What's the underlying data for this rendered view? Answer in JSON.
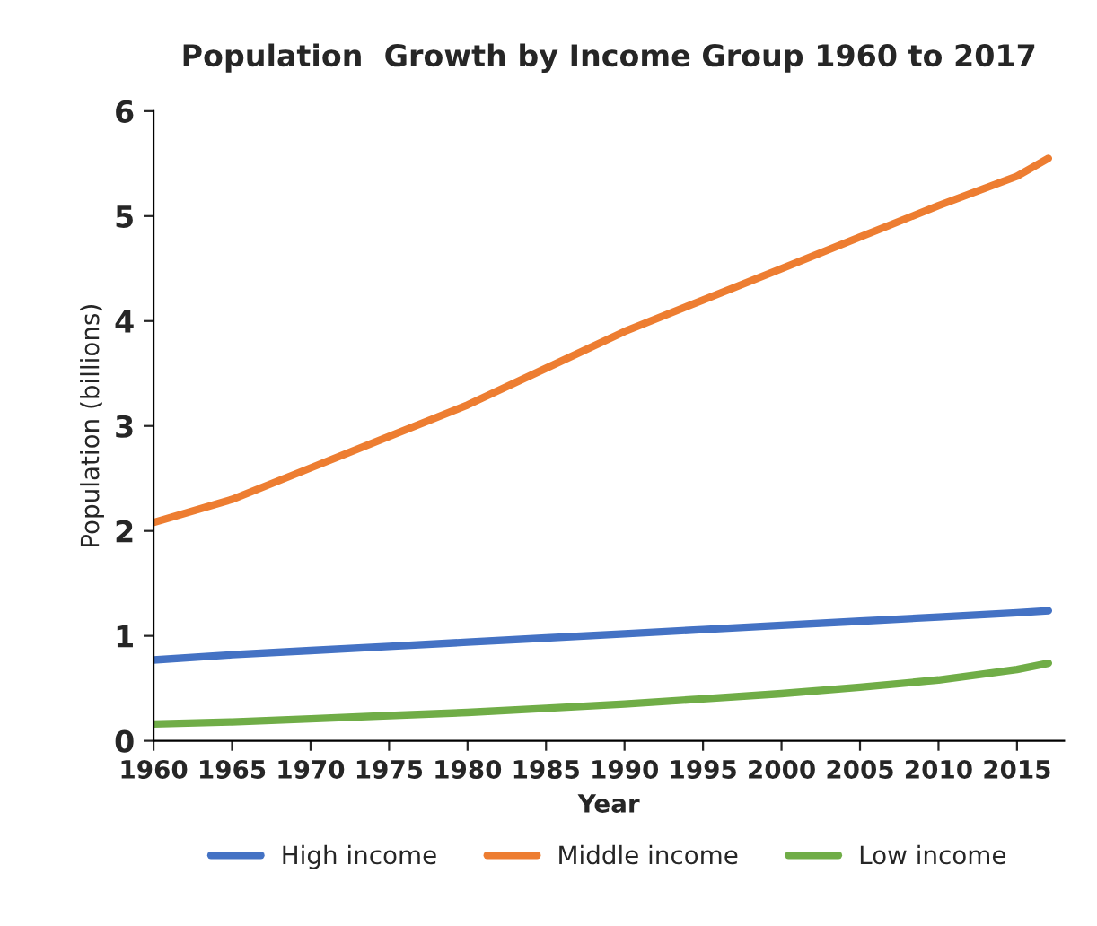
{
  "chart_data": {
    "type": "line",
    "title": "Population  Growth by Income Group 1960 to 2017",
    "xlabel": "Year",
    "ylabel": "Population (billions)",
    "x": [
      1960,
      1965,
      1970,
      1975,
      1980,
      1985,
      1990,
      1995,
      2000,
      2005,
      2010,
      2015,
      2017
    ],
    "series": [
      {
        "name": "High income",
        "color": "#4472c4",
        "values": [
          0.77,
          0.82,
          0.86,
          0.9,
          0.94,
          0.98,
          1.02,
          1.06,
          1.1,
          1.14,
          1.18,
          1.22,
          1.24
        ]
      },
      {
        "name": "Middle income",
        "color": "#ed7d31",
        "values": [
          2.08,
          2.3,
          2.6,
          2.9,
          3.2,
          3.55,
          3.9,
          4.2,
          4.5,
          4.8,
          5.1,
          5.38,
          5.55
        ]
      },
      {
        "name": "Low income",
        "color": "#70ad47",
        "values": [
          0.16,
          0.18,
          0.21,
          0.24,
          0.27,
          0.31,
          0.35,
          0.4,
          0.45,
          0.51,
          0.58,
          0.68,
          0.74
        ]
      }
    ],
    "xlim": [
      1960,
      2018
    ],
    "xticks": [
      1960,
      1965,
      1970,
      1975,
      1980,
      1985,
      1990,
      1995,
      2000,
      2005,
      2010,
      2015
    ],
    "ylim": [
      0,
      6
    ],
    "yticks": [
      0,
      1,
      2,
      3,
      4,
      5,
      6
    ],
    "grid": false,
    "legend": "bottom",
    "marker": "none",
    "line_style": "solid"
  }
}
